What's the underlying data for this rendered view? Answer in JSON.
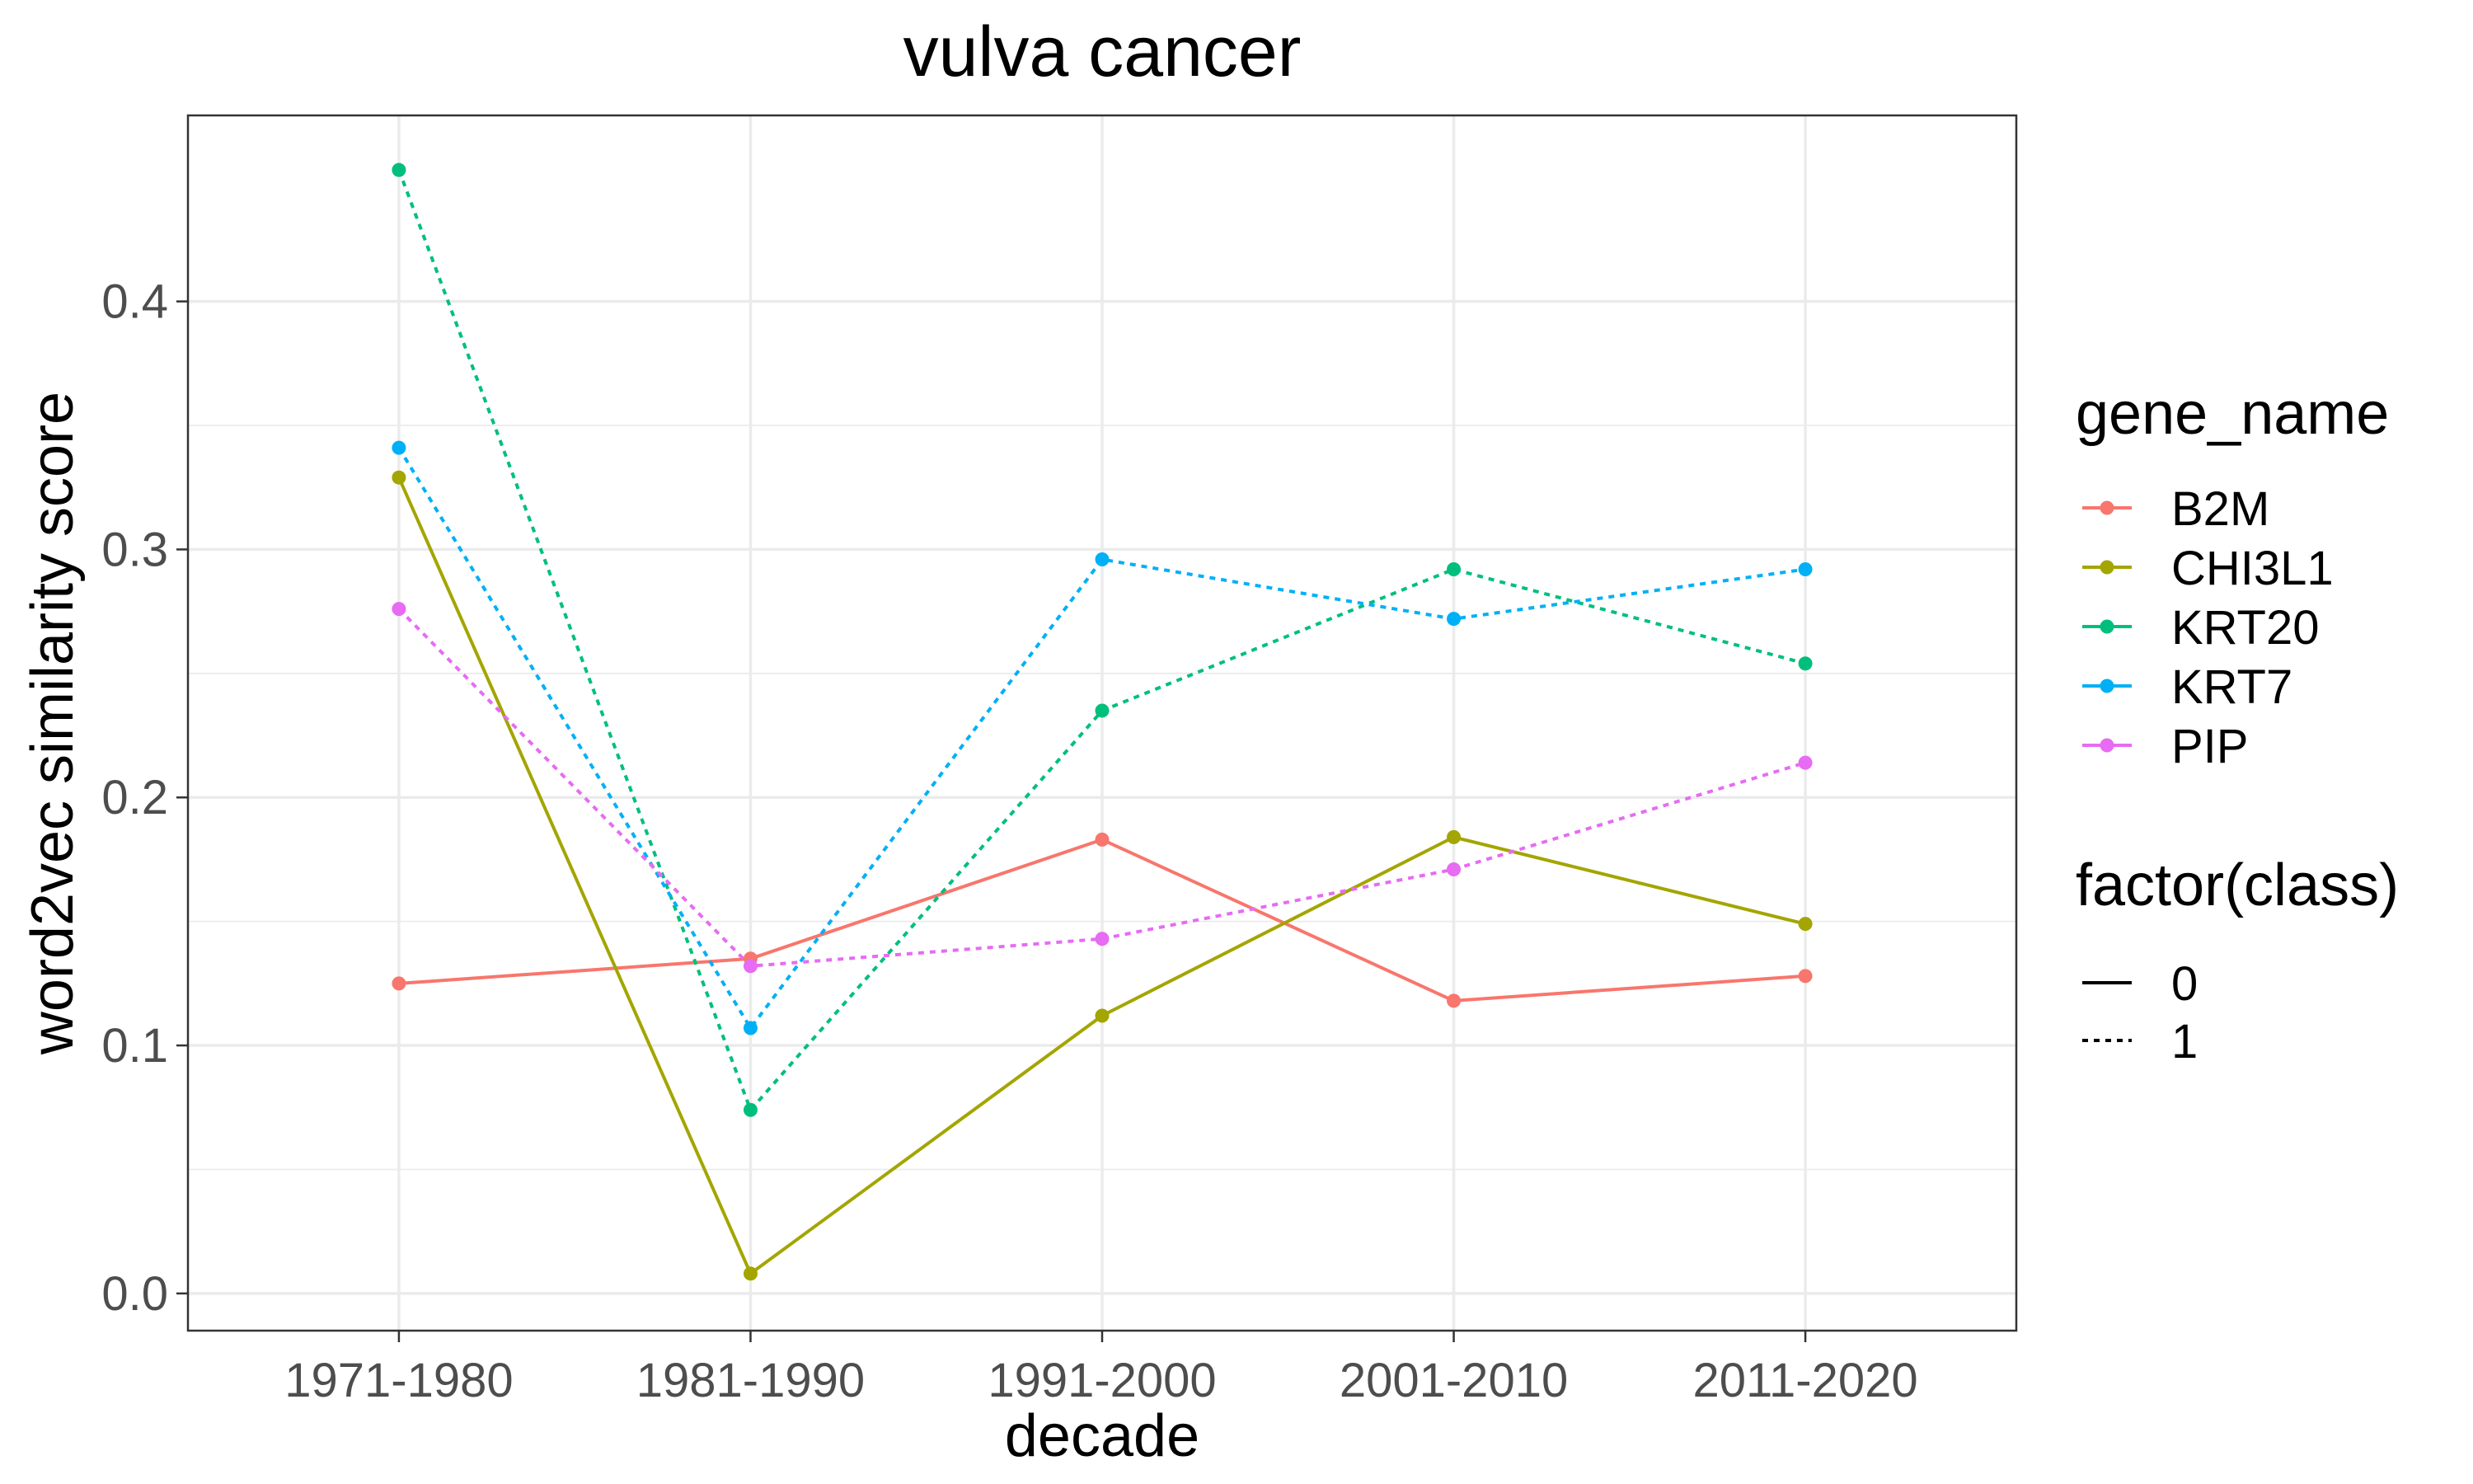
{
  "chart_data": {
    "type": "line",
    "title": "vulva cancer",
    "xlabel": "decade",
    "ylabel": "word2vec similarity score",
    "categories": [
      "1971-1980",
      "1981-1990",
      "1991-2000",
      "2001-2010",
      "2011-2020"
    ],
    "ylim": [
      -0.015,
      0.475
    ],
    "yticks": [
      "0.0",
      "0.1",
      "0.2",
      "0.3",
      "0.4"
    ],
    "ytick_values": [
      0.0,
      0.1,
      0.2,
      0.3,
      0.4
    ],
    "grid": true,
    "legend_position": "right",
    "color_legend": {
      "title": "gene_name",
      "entries": [
        "B2M",
        "CHI3L1",
        "KRT20",
        "KRT7",
        "PIP"
      ]
    },
    "linetype_legend": {
      "title": "factor(class)",
      "entries": [
        {
          "label": "0",
          "style": "solid"
        },
        {
          "label": "1",
          "style": "dotted"
        }
      ]
    },
    "series": [
      {
        "name": "B2M",
        "class": "0",
        "color": "#F8766D",
        "values": [
          0.125,
          0.135,
          0.183,
          0.118,
          0.128
        ]
      },
      {
        "name": "CHI3L1",
        "class": "0",
        "color": "#A3A500",
        "values": [
          0.329,
          0.008,
          0.112,
          0.184,
          0.149
        ]
      },
      {
        "name": "KRT20",
        "class": "1",
        "color": "#00BF7D",
        "values": [
          0.453,
          0.074,
          0.235,
          0.292,
          0.254
        ]
      },
      {
        "name": "KRT7",
        "class": "1",
        "color": "#00B0F6",
        "values": [
          0.341,
          0.107,
          0.296,
          0.272,
          0.292
        ]
      },
      {
        "name": "PIP",
        "class": "1",
        "color": "#E76BF3",
        "values": [
          0.276,
          0.132,
          0.143,
          0.171,
          0.214
        ]
      }
    ]
  }
}
